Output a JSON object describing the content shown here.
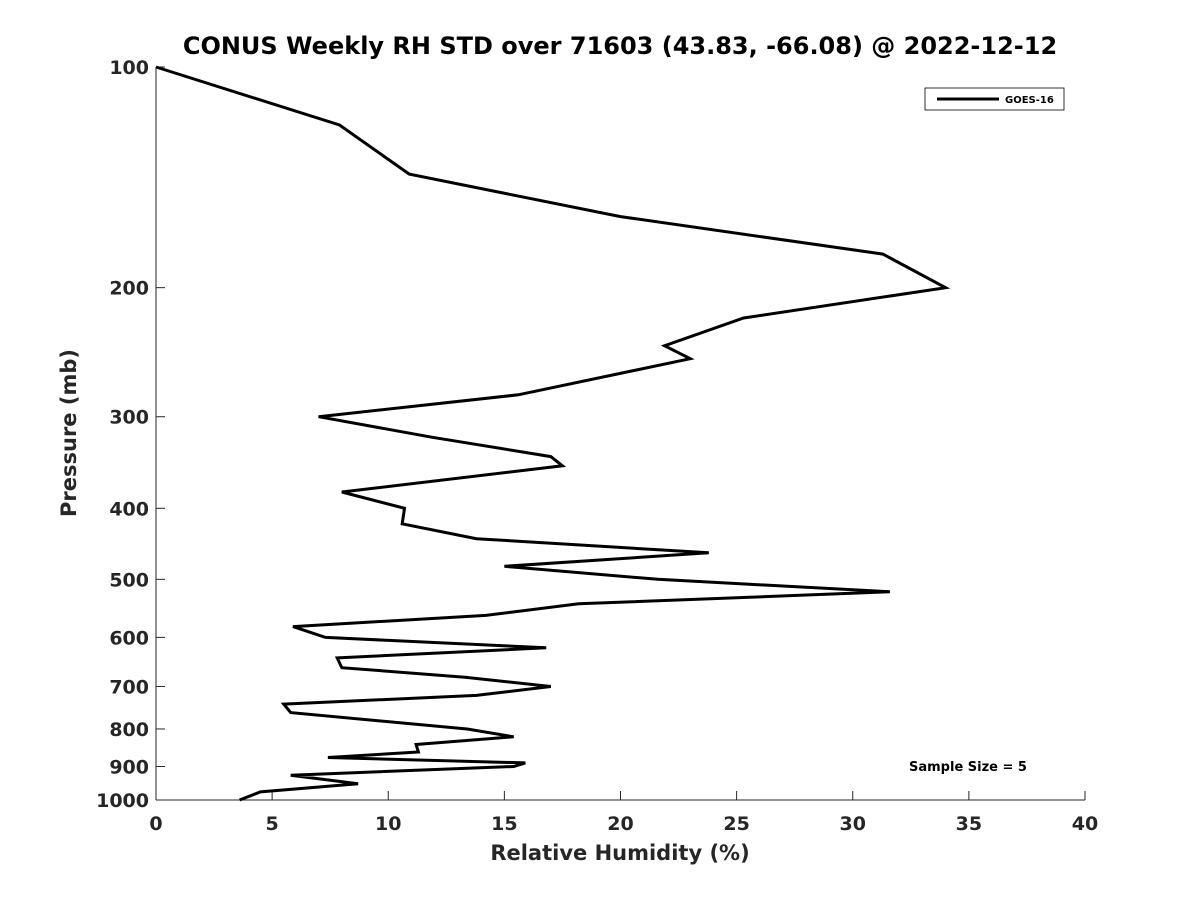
{
  "chart_data": {
    "type": "line",
    "title": "CONUS Weekly RH STD over 71603 (43.83, -66.08) @ 2022-12-12",
    "xlabel": "Relative Humidity (%)",
    "ylabel": "Pressure (mb)",
    "xlim": [
      0,
      40
    ],
    "ylim": [
      100,
      1000
    ],
    "yscale": "log",
    "y_reversed": true,
    "grid": false,
    "legend_position": "top-right",
    "x_ticks": [
      0,
      5,
      10,
      15,
      20,
      25,
      30,
      35,
      40
    ],
    "y_ticks": [
      100,
      200,
      300,
      400,
      500,
      600,
      700,
      800,
      900,
      1000
    ],
    "series": [
      {
        "name": "GOES-16",
        "color": "#000000",
        "x": [
          0,
          7.9,
          10.9,
          20.0,
          31.3,
          34.0,
          25.3,
          21.9,
          23.0,
          15.6,
          7.0,
          11.9,
          17.0,
          17.5,
          8.0,
          10.7,
          10.6,
          13.8,
          23.8,
          15.0,
          21.6,
          31.6,
          18.2,
          14.2,
          5.9,
          7.3,
          16.8,
          7.8,
          8.0,
          13.3,
          17.0,
          13.8,
          5.5,
          5.8,
          13.4,
          15.4,
          11.2,
          11.3,
          7.4,
          15.9,
          15.4,
          5.8,
          8.7,
          4.5,
          3.6
        ],
        "y": [
          100,
          120,
          140,
          160,
          180,
          200,
          220,
          240,
          250,
          280,
          300,
          320,
          340,
          350,
          380,
          400,
          420,
          440,
          460,
          480,
          500,
          520,
          540,
          560,
          580,
          600,
          620,
          640,
          660,
          680,
          700,
          720,
          740,
          760,
          800,
          820,
          840,
          860,
          875,
          890,
          900,
          925,
          950,
          975,
          1000
        ]
      }
    ],
    "annotation": "Sample Size = 5"
  }
}
